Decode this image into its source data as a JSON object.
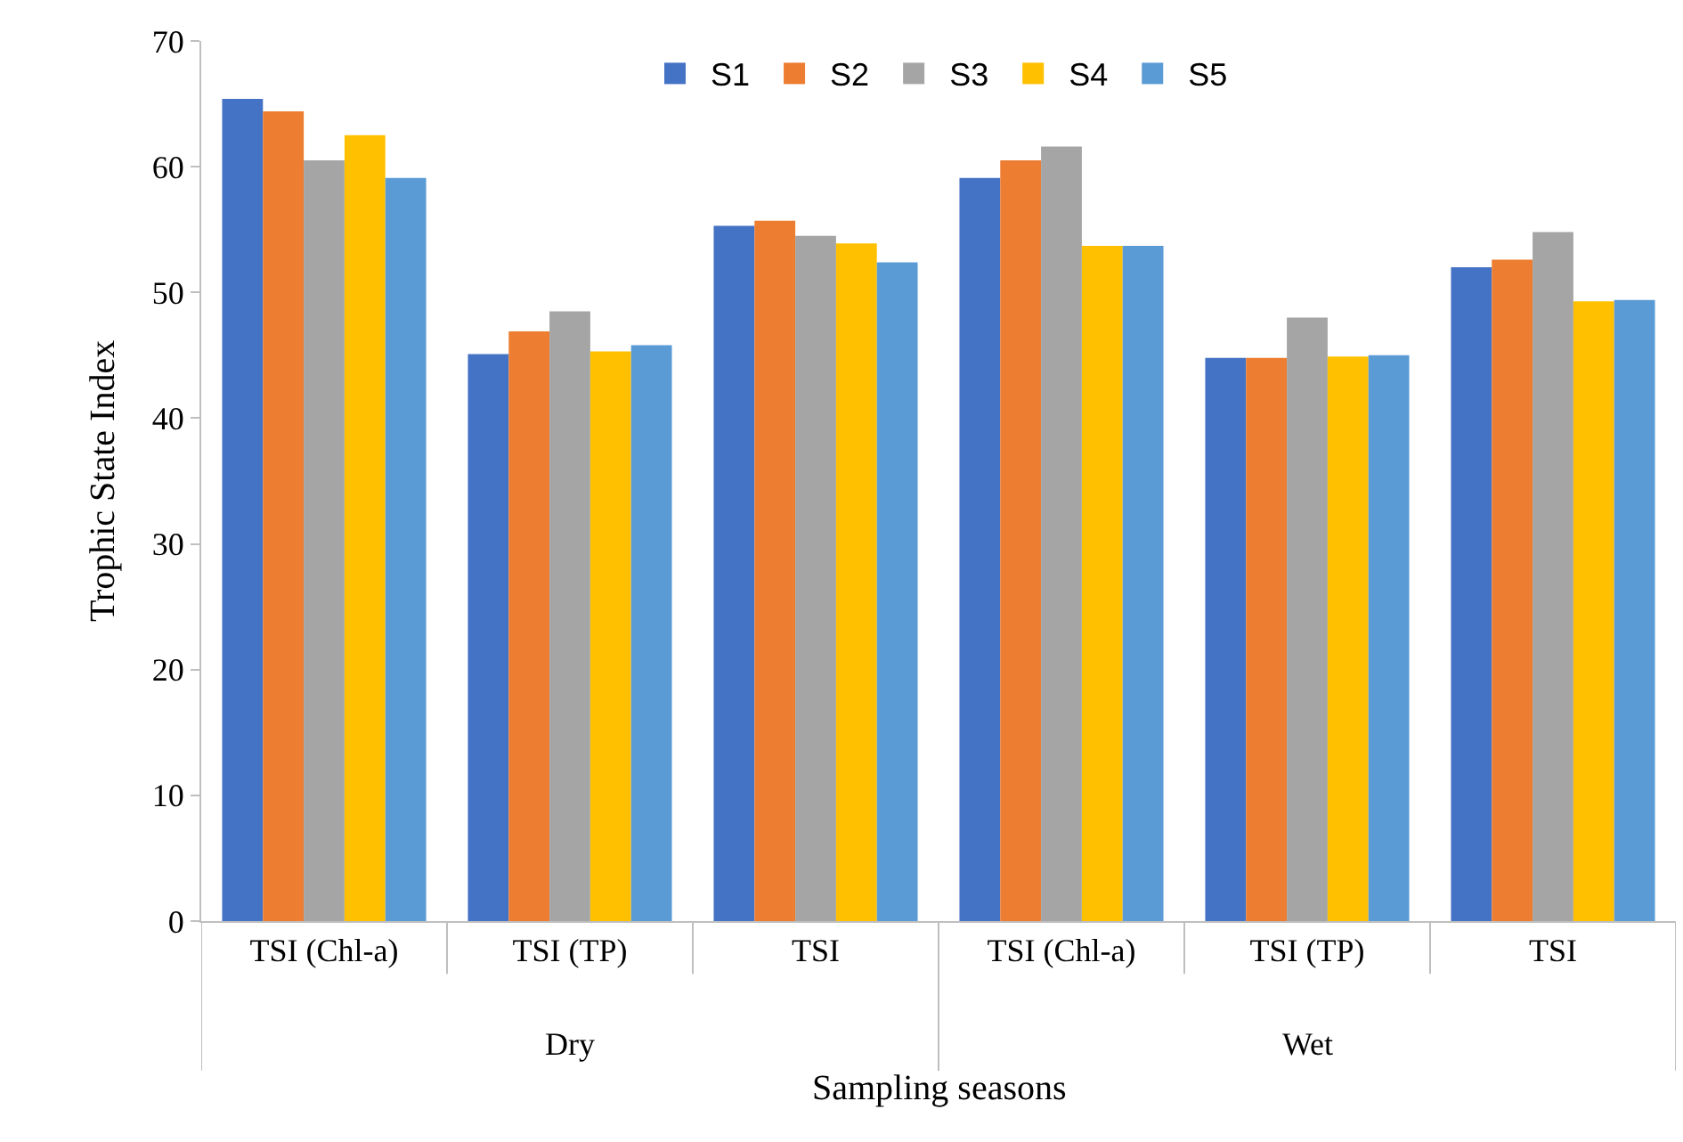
{
  "chart_data": {
    "type": "bar",
    "categories": [
      "TSI (Chl-a)",
      "TSI (TP)",
      "TSI",
      "TSI (Chl-a)",
      "TSI (TP)",
      "TSI"
    ],
    "series": [
      {
        "name": "S1",
        "color": "#4472c4",
        "values": [
          65.4,
          45.1,
          55.3,
          59.1,
          44.8,
          52.0
        ]
      },
      {
        "name": "S2",
        "color": "#ed7d31",
        "values": [
          64.4,
          46.9,
          55.7,
          60.5,
          44.8,
          52.6
        ]
      },
      {
        "name": "S3",
        "color": "#a5a5a5",
        "values": [
          60.5,
          48.5,
          54.5,
          61.6,
          48.0,
          54.8
        ]
      },
      {
        "name": "S4",
        "color": "#ffc000",
        "values": [
          62.5,
          45.3,
          53.9,
          53.7,
          44.9,
          49.3
        ]
      },
      {
        "name": "S5",
        "color": "#5b9bd5",
        "values": [
          59.1,
          45.8,
          52.4,
          53.7,
          45.0,
          49.4
        ]
      }
    ],
    "annotations": [
      "Dry",
      "Wet"
    ],
    "xlabel": "Sampling seasons",
    "ylabel": "Trophic State Index",
    "ylim": [
      0,
      70
    ],
    "yticks": [
      0,
      10,
      20,
      30,
      40,
      50,
      60,
      70
    ],
    "legend": "top"
  }
}
